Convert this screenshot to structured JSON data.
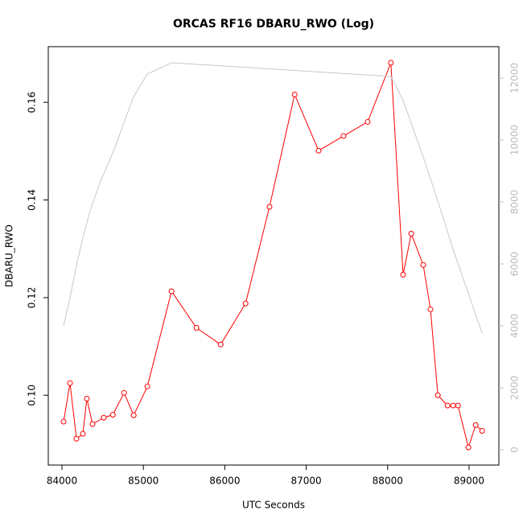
{
  "chart_data": {
    "type": "line",
    "title": "ORCAS RF16 DBARU_RWO (Log)",
    "x_label": "UTC Seconds",
    "y_label": "DBARU_RWO",
    "xlim": [
      83832,
      89366
    ],
    "ylim": [
      0.0857,
      0.1714
    ],
    "y2lim": [
      -494,
      13013
    ],
    "xticks": [
      84000,
      85000,
      86000,
      87000,
      88000,
      89000
    ],
    "yticks": [
      {
        "value": 0.1,
        "label": "0.10"
      },
      0.12,
      0.14,
      0.16
    ],
    "y2ticks": [
      0,
      2000,
      4000,
      6000,
      8000,
      10000,
      12000
    ],
    "series": [
      {
        "name": "DBARU_RWO",
        "color": "#ff0000",
        "markers": true,
        "x": [
          84020,
          84099,
          84178,
          84257,
          84306,
          84375,
          84514,
          84625,
          84763,
          84881,
          85049,
          85346,
          85652,
          85949,
          86255,
          86549,
          86858,
          87152,
          87458,
          87755,
          88040,
          88190,
          88290,
          88437,
          88526,
          88617,
          88735,
          88804,
          88864,
          88992,
          89081,
          89160
        ],
        "values": [
          0.0946,
          0.1025,
          0.0911,
          0.0921,
          0.0993,
          0.0941,
          0.0954,
          0.096,
          0.1005,
          0.0959,
          0.1018,
          0.1213,
          0.1138,
          0.1104,
          0.1188,
          0.1386,
          0.1616,
          0.1501,
          0.1531,
          0.156,
          0.1681,
          0.1247,
          0.1331,
          0.1267,
          0.1176,
          0.1,
          0.0979,
          0.0979,
          0.0979,
          0.0893,
          0.0939,
          0.0927
        ]
      },
      {
        "color": "#c8c8c8",
        "axis": "y2",
        "markers": false,
        "x": [
          84020,
          84099,
          84178,
          84257,
          84346,
          84474,
          84625,
          84763,
          84881,
          85049,
          85346,
          88040,
          88190,
          88437,
          88617,
          88804,
          88992,
          89160
        ],
        "values": [
          4000,
          4909,
          5948,
          6857,
          7714,
          8675,
          9584,
          10571,
          11403,
          12130,
          12494,
          12052,
          11273,
          9455,
          8026,
          6468,
          5039,
          3766
        ]
      }
    ]
  }
}
